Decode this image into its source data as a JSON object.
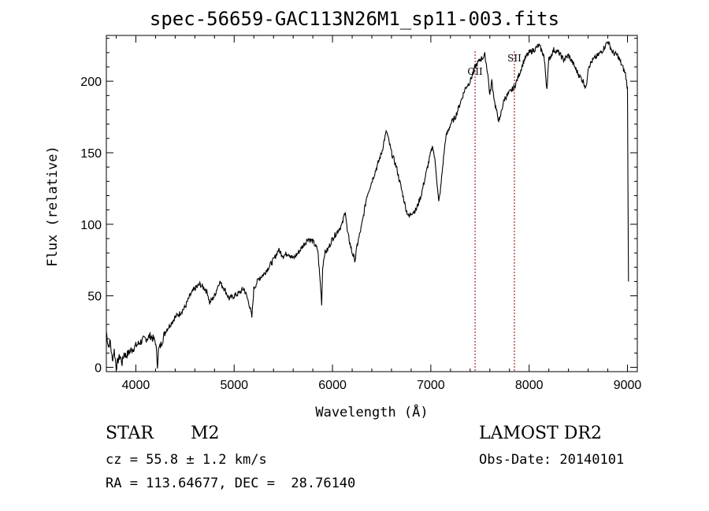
{
  "title": "spec-56659-GAC113N26M1_sp11-003.fits",
  "info": {
    "object_type": "STAR",
    "object_class": "M2",
    "survey": "LAMOST DR2",
    "cz": "cz = 55.8 ± 1.2 km/s",
    "obs_date": "Obs-Date: 20140101",
    "radec": "RA = 113.64677, DEC =  28.76140"
  },
  "chart_data": {
    "type": "line",
    "xlabel": "Wavelength (Å)",
    "ylabel": "Flux (relative)",
    "xlim": [
      3700,
      9100
    ],
    "ylim": [
      -3,
      232
    ],
    "xticks": [
      4000,
      5000,
      6000,
      7000,
      8000,
      9000
    ],
    "yticks": [
      0,
      50,
      100,
      150,
      200
    ],
    "line_color": "#000000",
    "marker_color": "#8b0000",
    "lines": [
      {
        "label": "OII",
        "x": 7450
      },
      {
        "label": "SII",
        "x": 7850
      }
    ],
    "series": [
      {
        "x": [
          3700,
          3720,
          3740,
          3760,
          3780,
          3800,
          3820,
          3840,
          3860,
          3880,
          3900,
          3950,
          4000,
          4050,
          4100,
          4150,
          4200,
          4220,
          4230,
          4250,
          4300,
          4350,
          4400,
          4450,
          4500,
          4550,
          4600,
          4650,
          4700,
          4730,
          4750,
          4800,
          4850,
          4900,
          4950,
          5000,
          5050,
          5100,
          5150,
          5180,
          5200,
          5250,
          5300,
          5350,
          5400,
          5450,
          5500,
          5550,
          5600,
          5650,
          5700,
          5750,
          5800,
          5850,
          5880,
          5890,
          5900,
          5920,
          5950,
          6000,
          6050,
          6100,
          6130,
          6150,
          6200,
          6230,
          6250,
          6300,
          6350,
          6400,
          6450,
          6500,
          6530,
          6550,
          6600,
          6650,
          6700,
          6750,
          6780,
          6800,
          6850,
          6900,
          6950,
          7000,
          7020,
          7050,
          7080,
          7100,
          7120,
          7150,
          7200,
          7250,
          7300,
          7350,
          7400,
          7450,
          7500,
          7550,
          7580,
          7600,
          7620,
          7650,
          7680,
          7700,
          7720,
          7750,
          7800,
          7850,
          7900,
          7950,
          8000,
          8050,
          8100,
          8150,
          8180,
          8200,
          8250,
          8300,
          8350,
          8400,
          8450,
          8500,
          8550,
          8580,
          8600,
          8650,
          8700,
          8750,
          8800,
          8850,
          8900,
          8950,
          8980,
          9000,
          9010
        ],
        "values": [
          25,
          15,
          18,
          5,
          12,
          0,
          5,
          8,
          3,
          10,
          8,
          12,
          15,
          18,
          20,
          22,
          18,
          2,
          12,
          15,
          25,
          30,
          35,
          38,
          42,
          50,
          55,
          58,
          55,
          52,
          45,
          50,
          60,
          55,
          48,
          50,
          52,
          55,
          45,
          35,
          55,
          62,
          65,
          70,
          75,
          82,
          78,
          80,
          76,
          80,
          85,
          90,
          88,
          82,
          55,
          45,
          70,
          80,
          82,
          90,
          95,
          100,
          110,
          95,
          80,
          75,
          85,
          100,
          120,
          130,
          140,
          150,
          160,
          165,
          150,
          140,
          125,
          110,
          105,
          108,
          110,
          120,
          135,
          150,
          155,
          140,
          115,
          125,
          140,
          160,
          170,
          175,
          185,
          195,
          200,
          210,
          215,
          218,
          205,
          190,
          200,
          185,
          175,
          172,
          180,
          188,
          192,
          196,
          205,
          215,
          220,
          222,
          225,
          218,
          195,
          215,
          222,
          220,
          215,
          218,
          212,
          205,
          200,
          195,
          210,
          215,
          218,
          222,
          228,
          220,
          218,
          210,
          205,
          195,
          60
        ]
      }
    ]
  }
}
